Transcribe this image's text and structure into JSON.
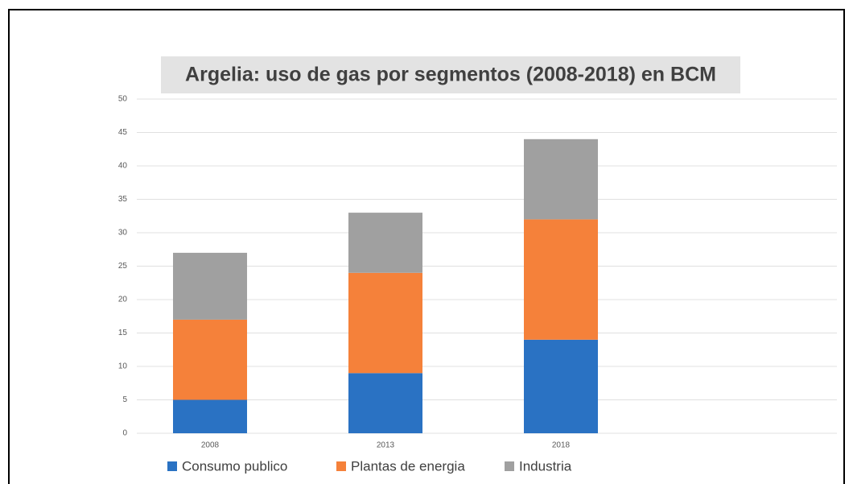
{
  "chart_data": {
    "type": "stacked_bar",
    "title": "Argelia: uso de gas por segmentos (2008-2018) en BCM",
    "categories": [
      "2008",
      "2013",
      "2018"
    ],
    "series": [
      {
        "name": "Consumo publico",
        "color": "#2a72c3",
        "values": [
          5,
          9,
          14
        ]
      },
      {
        "name": "Plantas de energia",
        "color": "#f5813a",
        "values": [
          12,
          15,
          18
        ]
      },
      {
        "name": "Industria",
        "color": "#a0a0a0",
        "values": [
          10,
          9,
          12
        ]
      }
    ],
    "ylim": [
      0,
      50
    ],
    "yticks": [
      0,
      5,
      10,
      15,
      20,
      25,
      30,
      35,
      40,
      45,
      50
    ],
    "grid": true
  }
}
